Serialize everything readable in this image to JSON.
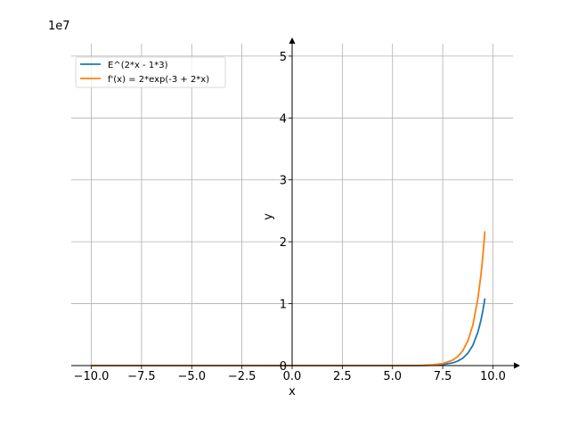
{
  "chart_data": {
    "type": "line",
    "title": "",
    "xlabel": "x",
    "ylabel": "y",
    "offset_label": "1e7",
    "xlim": [
      -11,
      11
    ],
    "ylim": [
      0,
      5.2
    ],
    "x_ticks": [
      -10,
      -7.5,
      -5,
      -2.5,
      0,
      2.5,
      5,
      7.5,
      10
    ],
    "x_tick_labels": [
      "−10.0",
      "−7.5",
      "−5.0",
      "−2.5",
      "0.0",
      "2.5",
      "5.0",
      "7.5",
      "10.0"
    ],
    "y_ticks": [
      0,
      1,
      2,
      3,
      4,
      5
    ],
    "y_tick_labels": [
      "0",
      "1",
      "2",
      "3",
      "4",
      "5"
    ],
    "grid": true,
    "legend": "top-left",
    "series": [
      {
        "name": "E^(2*x - 1*3)",
        "color": "#1f77b4",
        "x": [
          -10,
          -5,
          0,
          5,
          6,
          6.5,
          7,
          7.5,
          8,
          8.25,
          8.5,
          8.75,
          9,
          9.25,
          9.4,
          9.5,
          9.6
        ],
        "y": [
          0,
          0,
          0,
          0.0001,
          0.0008,
          0.0022,
          0.006,
          0.0163,
          0.0442,
          0.0729,
          0.1203,
          0.1983,
          0.3269,
          0.539,
          0.7275,
          0.8886,
          1.0854
        ]
      },
      {
        "name": "f'(x) = 2*exp(-3 + 2*x)",
        "color": "#ff7f0e",
        "x": [
          -10,
          -5,
          0,
          5,
          6,
          6.5,
          7,
          7.5,
          8,
          8.25,
          8.5,
          8.75,
          9,
          9.25,
          9.4,
          9.5,
          9.6
        ],
        "y": [
          0,
          0,
          0,
          0.0002,
          0.0016,
          0.0044,
          0.012,
          0.0326,
          0.0885,
          0.1459,
          0.2405,
          0.3966,
          0.6539,
          1.0781,
          1.455,
          1.7772,
          2.1708
        ]
      }
    ]
  }
}
